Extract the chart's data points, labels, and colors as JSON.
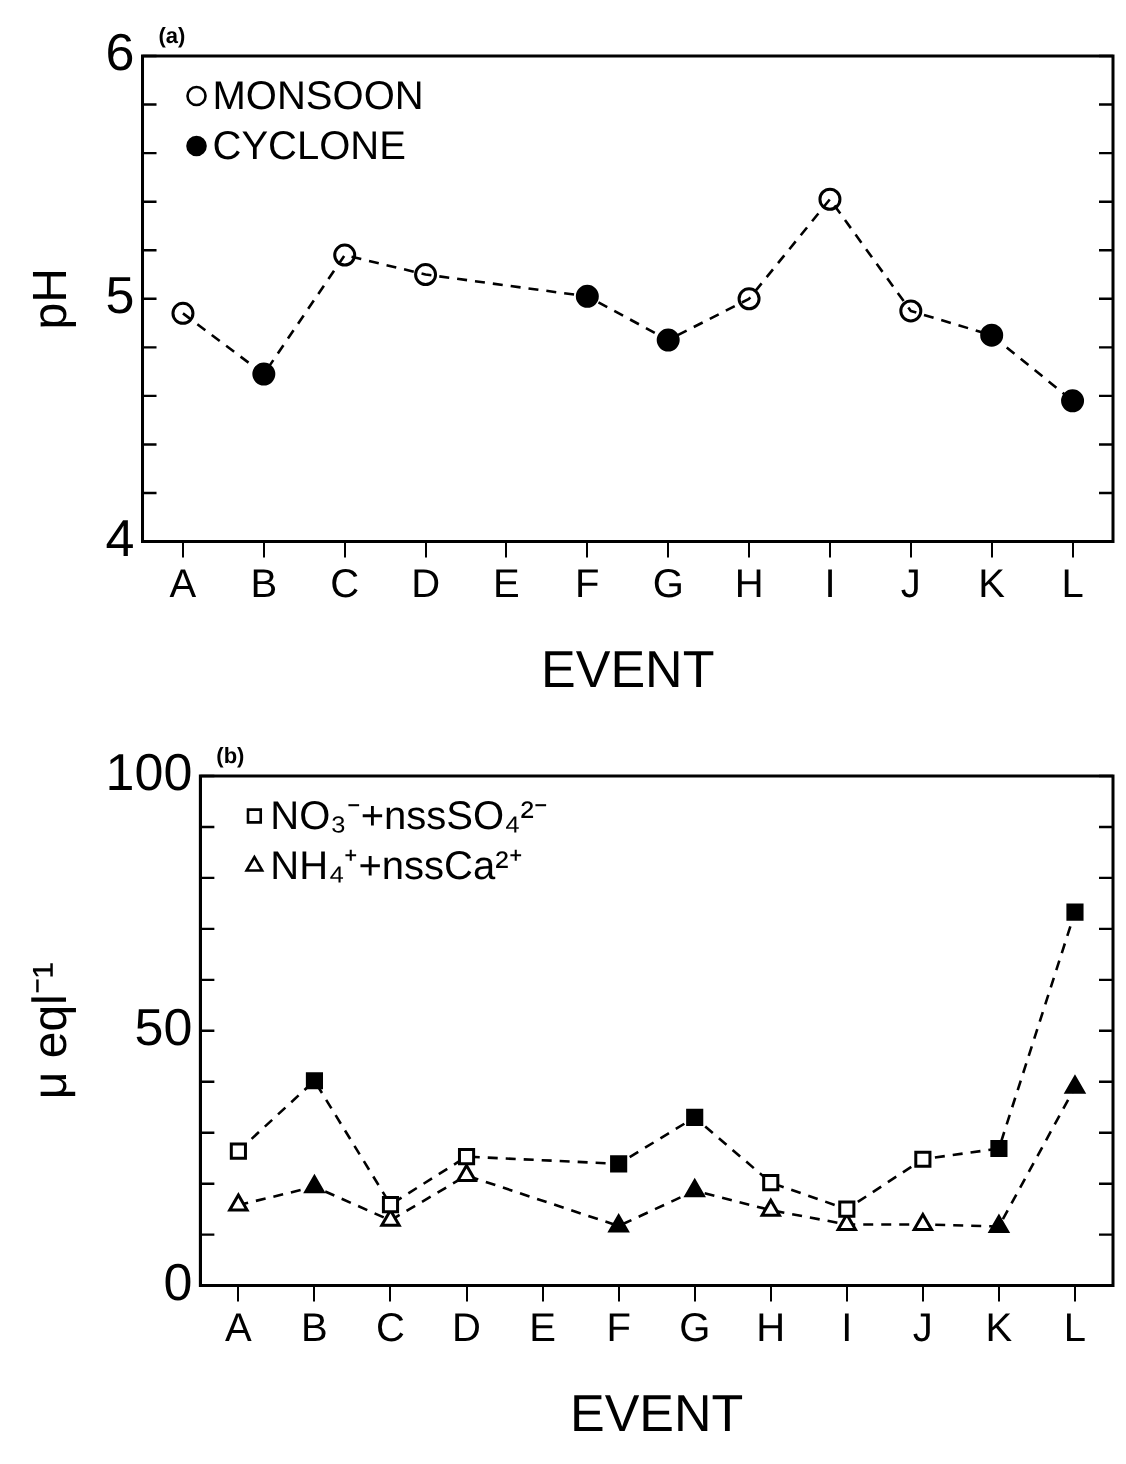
{
  "chart_data": [
    {
      "type": "line",
      "ylabel": "pH",
      "xlabel": "EVENT",
      "annotations": [
        "(a)"
      ],
      "legend": "top left",
      "grid": false,
      "categories": [
        "A",
        "B",
        "C",
        "D",
        "E",
        "F",
        "G",
        "H",
        "I",
        "J",
        "K",
        "L"
      ],
      "ylim": [
        4,
        6
      ],
      "yticks": [
        4,
        {
          "value": 4.2,
          "label": null
        },
        {
          "value": 4.4,
          "label": null
        },
        {
          "value": 4.6,
          "label": null
        },
        {
          "value": 4.8,
          "label": null
        },
        5,
        {
          "value": 5.2,
          "label": null
        },
        {
          "value": 5.4,
          "label": null
        },
        {
          "value": 5.6,
          "label": null
        },
        {
          "value": 5.8,
          "label": null
        },
        6
      ],
      "series": [
        {
          "type": "line",
          "color": "#000000",
          "marker": "none",
          "line_style": "dashed",
          "values": [
            4.94,
            4.69,
            5.18,
            5.1,
            null,
            5.01,
            4.83,
            5.0,
            5.41,
            4.95,
            4.85,
            4.58
          ]
        },
        {
          "type": "scatter",
          "name": "MONSOON",
          "color": "#ffffff",
          "marker": "circle",
          "values": [
            4.94,
            null,
            5.18,
            5.1,
            null,
            null,
            null,
            5.0,
            5.41,
            4.95,
            null,
            null
          ]
        },
        {
          "type": "scatter",
          "name": "CYCLONE",
          "color": "#000000",
          "marker": "circle",
          "values": [
            null,
            4.69,
            null,
            null,
            null,
            5.01,
            4.83,
            null,
            null,
            null,
            4.85,
            4.58
          ]
        }
      ]
    },
    {
      "type": "line",
      "ylabel": "μ eql⁻¹",
      "xlabel": "EVENT",
      "annotations": [
        "(b)"
      ],
      "legend": "top left",
      "grid": false,
      "categories": [
        "A",
        "B",
        "C",
        "D",
        "E",
        "F",
        "G",
        "H",
        "I",
        "J",
        "K",
        "L"
      ],
      "ylim": [
        0,
        100
      ],
      "yticks": [
        0,
        {
          "value": 10,
          "label": null
        },
        {
          "value": 20,
          "label": null
        },
        {
          "value": 30,
          "label": null
        },
        {
          "value": 40,
          "label": null
        },
        50,
        {
          "value": 60,
          "label": null
        },
        {
          "value": 70,
          "label": null
        },
        {
          "value": 80,
          "label": null
        },
        {
          "value": 90,
          "label": null
        },
        100
      ],
      "series": [
        {
          "type": "line",
          "name": "NO₃⁻+nssSO₄²⁻",
          "color": "#000000",
          "marker": "square",
          "line_style": "dashed",
          "colors": [
            "#ffffff",
            "#000000",
            "#ffffff",
            "#ffffff",
            "#ffffff",
            "#000000",
            "#000000",
            "#ffffff",
            "#ffffff",
            "#ffffff",
            "#000000",
            "#000000"
          ],
          "values": [
            26.4,
            40.2,
            15.9,
            25.3,
            null,
            23.9,
            33.0,
            20.2,
            15.0,
            24.8,
            26.9,
            73.3
          ]
        },
        {
          "type": "line",
          "name": "NH₄⁺+nssCa²⁺",
          "color": "#000000",
          "marker": "triangle",
          "line_style": "dashed",
          "colors": [
            "#ffffff",
            "#000000",
            "#ffffff",
            "#ffffff",
            "#ffffff",
            "#000000",
            "#000000",
            "#ffffff",
            "#ffffff",
            "#ffffff",
            "#000000",
            "#000000"
          ],
          "values": [
            15.8,
            19.4,
            12.8,
            21.6,
            null,
            11.7,
            18.6,
            14.8,
            12.0,
            12.0,
            11.6,
            38.9
          ]
        }
      ]
    }
  ]
}
